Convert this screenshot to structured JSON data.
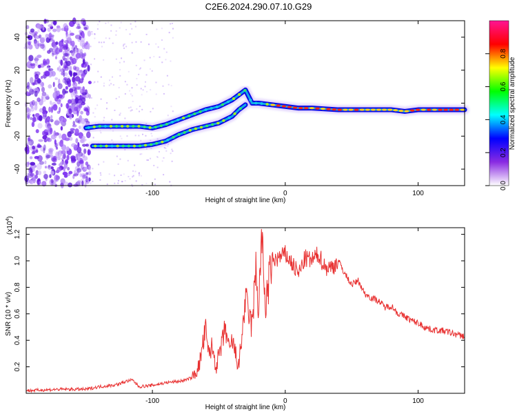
{
  "title": "C2E6.2024.290.07.10.G29",
  "chart_data": [
    {
      "type": "heatmap",
      "xlabel": "Height of straight line (km)",
      "ylabel": "Frequency (Hz)",
      "xlim": [
        -195,
        135
      ],
      "ylim": [
        -50,
        50
      ],
      "xticks": [
        -100,
        0,
        100
      ],
      "xtick_labels": [
        "-100",
        "0",
        "100"
      ],
      "yticks": [
        -40,
        -20,
        0,
        20,
        40
      ],
      "ytick_labels": [
        "-40",
        "-20",
        "0",
        "20",
        "40"
      ],
      "colorbar": {
        "label": "Normalized spectral amplitude",
        "range": [
          0,
          1
        ],
        "ticks": [
          0.0,
          0.2,
          0.4,
          0.6,
          0.8
        ],
        "tick_labels": [
          "0.0",
          "0.2",
          "0.4",
          "0.6",
          "0.8"
        ],
        "colors": [
          "#ffffff",
          "#8a2be2",
          "#0000ff",
          "#00ffff",
          "#00ff00",
          "#ffff00",
          "#ff0000",
          "#ff1493"
        ]
      },
      "traces": [
        {
          "x": [
            -150,
            -140,
            -130,
            -120,
            -110,
            -100,
            -90,
            -80,
            -70,
            -60,
            -50,
            -40,
            -35,
            -30,
            -25,
            -20,
            -10,
            0,
            10,
            20,
            40,
            60,
            80,
            90,
            100,
            110,
            120,
            135
          ],
          "y": [
            -15,
            -14,
            -14,
            -14,
            -14,
            -15,
            -13,
            -10,
            -7,
            -4,
            -2,
            2,
            5,
            8,
            0,
            0,
            -1,
            -2,
            -3,
            -3,
            -4,
            -4,
            -4,
            -5,
            -4,
            -4,
            -4,
            -4
          ]
        },
        {
          "x": [
            -145,
            -130,
            -120,
            -110,
            -100,
            -90,
            -80,
            -70,
            -60,
            -50,
            -40,
            -35,
            -30
          ],
          "y": [
            -26,
            -26,
            -26,
            -26,
            -25,
            -23,
            -19,
            -16,
            -14,
            -12,
            -8,
            -4,
            -1
          ]
        }
      ]
    },
    {
      "type": "line",
      "xlabel": "Height of straight line (km)",
      "ylabel": "SNR (10 * v/v)",
      "scale_label": "(x10",
      "scale_exp": "4",
      "xlim": [
        -195,
        135
      ],
      "ylim": [
        0,
        1.25
      ],
      "xticks": [
        -100,
        0,
        100
      ],
      "xtick_labels": [
        "-100",
        "0",
        "100"
      ],
      "yticks": [
        0.2,
        0.4,
        0.6,
        0.8,
        1.0,
        1.2
      ],
      "ytick_labels": [
        "0.2",
        "0.4",
        "0.6",
        "0.8",
        "1.0",
        "1.2"
      ],
      "line_color": "#e83030",
      "series": [
        {
          "x": [
            -195,
            -170,
            -150,
            -140,
            -130,
            -125,
            -120,
            -115,
            -110,
            -100,
            -90,
            -80,
            -75,
            -70,
            -65,
            -60,
            -58,
            -55,
            -52,
            -50,
            -48,
            -45,
            -42,
            -40,
            -35,
            -30,
            -25,
            -22,
            -20,
            -18,
            -15,
            -10,
            -5,
            0,
            5,
            10,
            15,
            20,
            25,
            30,
            35,
            40,
            45,
            50,
            55,
            60,
            65,
            70,
            75,
            80,
            85,
            90,
            95,
            100,
            105,
            110,
            120,
            130,
            135
          ],
          "y": [
            0.02,
            0.03,
            0.03,
            0.05,
            0.06,
            0.07,
            0.09,
            0.1,
            0.05,
            0.06,
            0.08,
            0.09,
            0.1,
            0.12,
            0.2,
            0.48,
            0.3,
            0.35,
            0.2,
            0.28,
            0.35,
            0.5,
            0.3,
            0.4,
            0.2,
            0.7,
            0.5,
            0.95,
            0.6,
            1.22,
            0.65,
            1.0,
            1.02,
            1.05,
            0.98,
            0.9,
            1.02,
            1.0,
            1.05,
            0.95,
            0.95,
            1.0,
            0.9,
            0.82,
            0.85,
            0.75,
            0.72,
            0.7,
            0.65,
            0.66,
            0.6,
            0.58,
            0.55,
            0.53,
            0.5,
            0.48,
            0.47,
            0.44,
            0.43
          ]
        }
      ]
    }
  ]
}
